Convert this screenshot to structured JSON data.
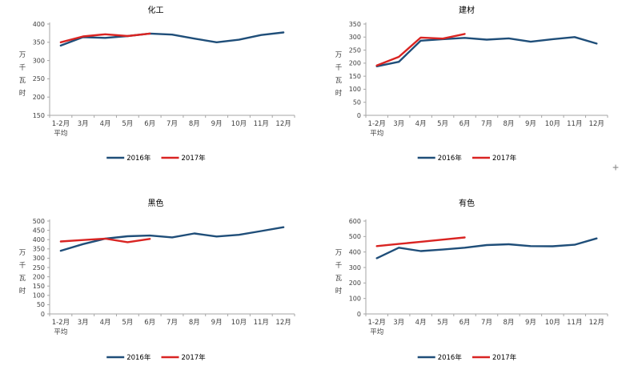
{
  "page": {
    "background": "#FFFFFF"
  },
  "cursor": {
    "glyph": "+"
  },
  "colors": {
    "series_2016": "#1F4E79",
    "series_2017": "#D92422",
    "axis_line": "#A6A6A6",
    "tick_label": "#3F3F3F",
    "title_text": "#000000"
  },
  "legend": {
    "labels": [
      "2016年",
      "2017年"
    ]
  },
  "chart_data": [
    {
      "type": "line",
      "title": "化工",
      "ylabel": "万千瓦时",
      "xlabel": "",
      "categories": [
        "1-2月平均",
        "3月",
        "4月",
        "5月",
        "6月",
        "7月",
        "8月",
        "9月",
        "10月",
        "11月",
        "12月"
      ],
      "first_category_lines": [
        "1-2月",
        "平均"
      ],
      "ylim": [
        150,
        400
      ],
      "ytick_step": 50,
      "grid": false,
      "legend_position": "bottom",
      "series": [
        {
          "name": "2016年",
          "color_key": "series_2016",
          "values": [
            341,
            364,
            362,
            367,
            374,
            371,
            360,
            350,
            357,
            370,
            377
          ]
        },
        {
          "name": "2017年",
          "color_key": "series_2017",
          "values": [
            350,
            366,
            372,
            367,
            374
          ]
        }
      ]
    },
    {
      "type": "line",
      "title": "建材",
      "ylabel": "万千瓦时",
      "xlabel": "",
      "categories": [
        "1-2月平均",
        "3月",
        "4月",
        "5月",
        "6月",
        "7月",
        "8月",
        "9月",
        "10月",
        "11月",
        "12月"
      ],
      "first_category_lines": [
        "1-2月",
        "平均"
      ],
      "ylim": [
        0,
        350
      ],
      "ytick_step": 50,
      "grid": false,
      "legend_position": "bottom",
      "series": [
        {
          "name": "2016年",
          "color_key": "series_2016",
          "values": [
            188,
            205,
            286,
            292,
            297,
            290,
            295,
            282,
            292,
            300,
            275
          ]
        },
        {
          "name": "2017年",
          "color_key": "series_2017",
          "values": [
            191,
            224,
            298,
            294,
            312
          ]
        }
      ]
    },
    {
      "type": "line",
      "title": "黑色",
      "ylabel": "万千瓦时",
      "xlabel": "",
      "categories": [
        "1-2月平均",
        "3月",
        "4月",
        "5月",
        "6月",
        "7月",
        "8月",
        "9月",
        "10月",
        "11月",
        "12月"
      ],
      "first_category_lines": [
        "1-2月",
        "平均"
      ],
      "ylim": [
        0,
        500
      ],
      "ytick_step": 50,
      "grid": false,
      "legend_position": "bottom",
      "series": [
        {
          "name": "2016年",
          "color_key": "series_2016",
          "values": [
            340,
            376,
            405,
            418,
            422,
            412,
            433,
            417,
            426,
            446,
            467
          ]
        },
        {
          "name": "2017年",
          "color_key": "series_2017",
          "values": [
            390,
            398,
            405,
            386,
            404
          ]
        }
      ]
    },
    {
      "type": "line",
      "title": "有色",
      "ylabel": "万千瓦时",
      "xlabel": "",
      "categories": [
        "1-2月平均",
        "3月",
        "4月",
        "5月",
        "6月",
        "7月",
        "8月",
        "9月",
        "10月",
        "11月",
        "12月"
      ],
      "first_category_lines": [
        "1-2月",
        "平均"
      ],
      "ylim": [
        0,
        600
      ],
      "ytick_step": 100,
      "grid": false,
      "legend_position": "bottom",
      "series": [
        {
          "name": "2016年",
          "color_key": "series_2016",
          "values": [
            360,
            428,
            406,
            416,
            428,
            445,
            450,
            438,
            437,
            447,
            488
          ]
        },
        {
          "name": "2017年",
          "color_key": "series_2017",
          "values": [
            438,
            452,
            466,
            480,
            494
          ]
        }
      ]
    }
  ]
}
